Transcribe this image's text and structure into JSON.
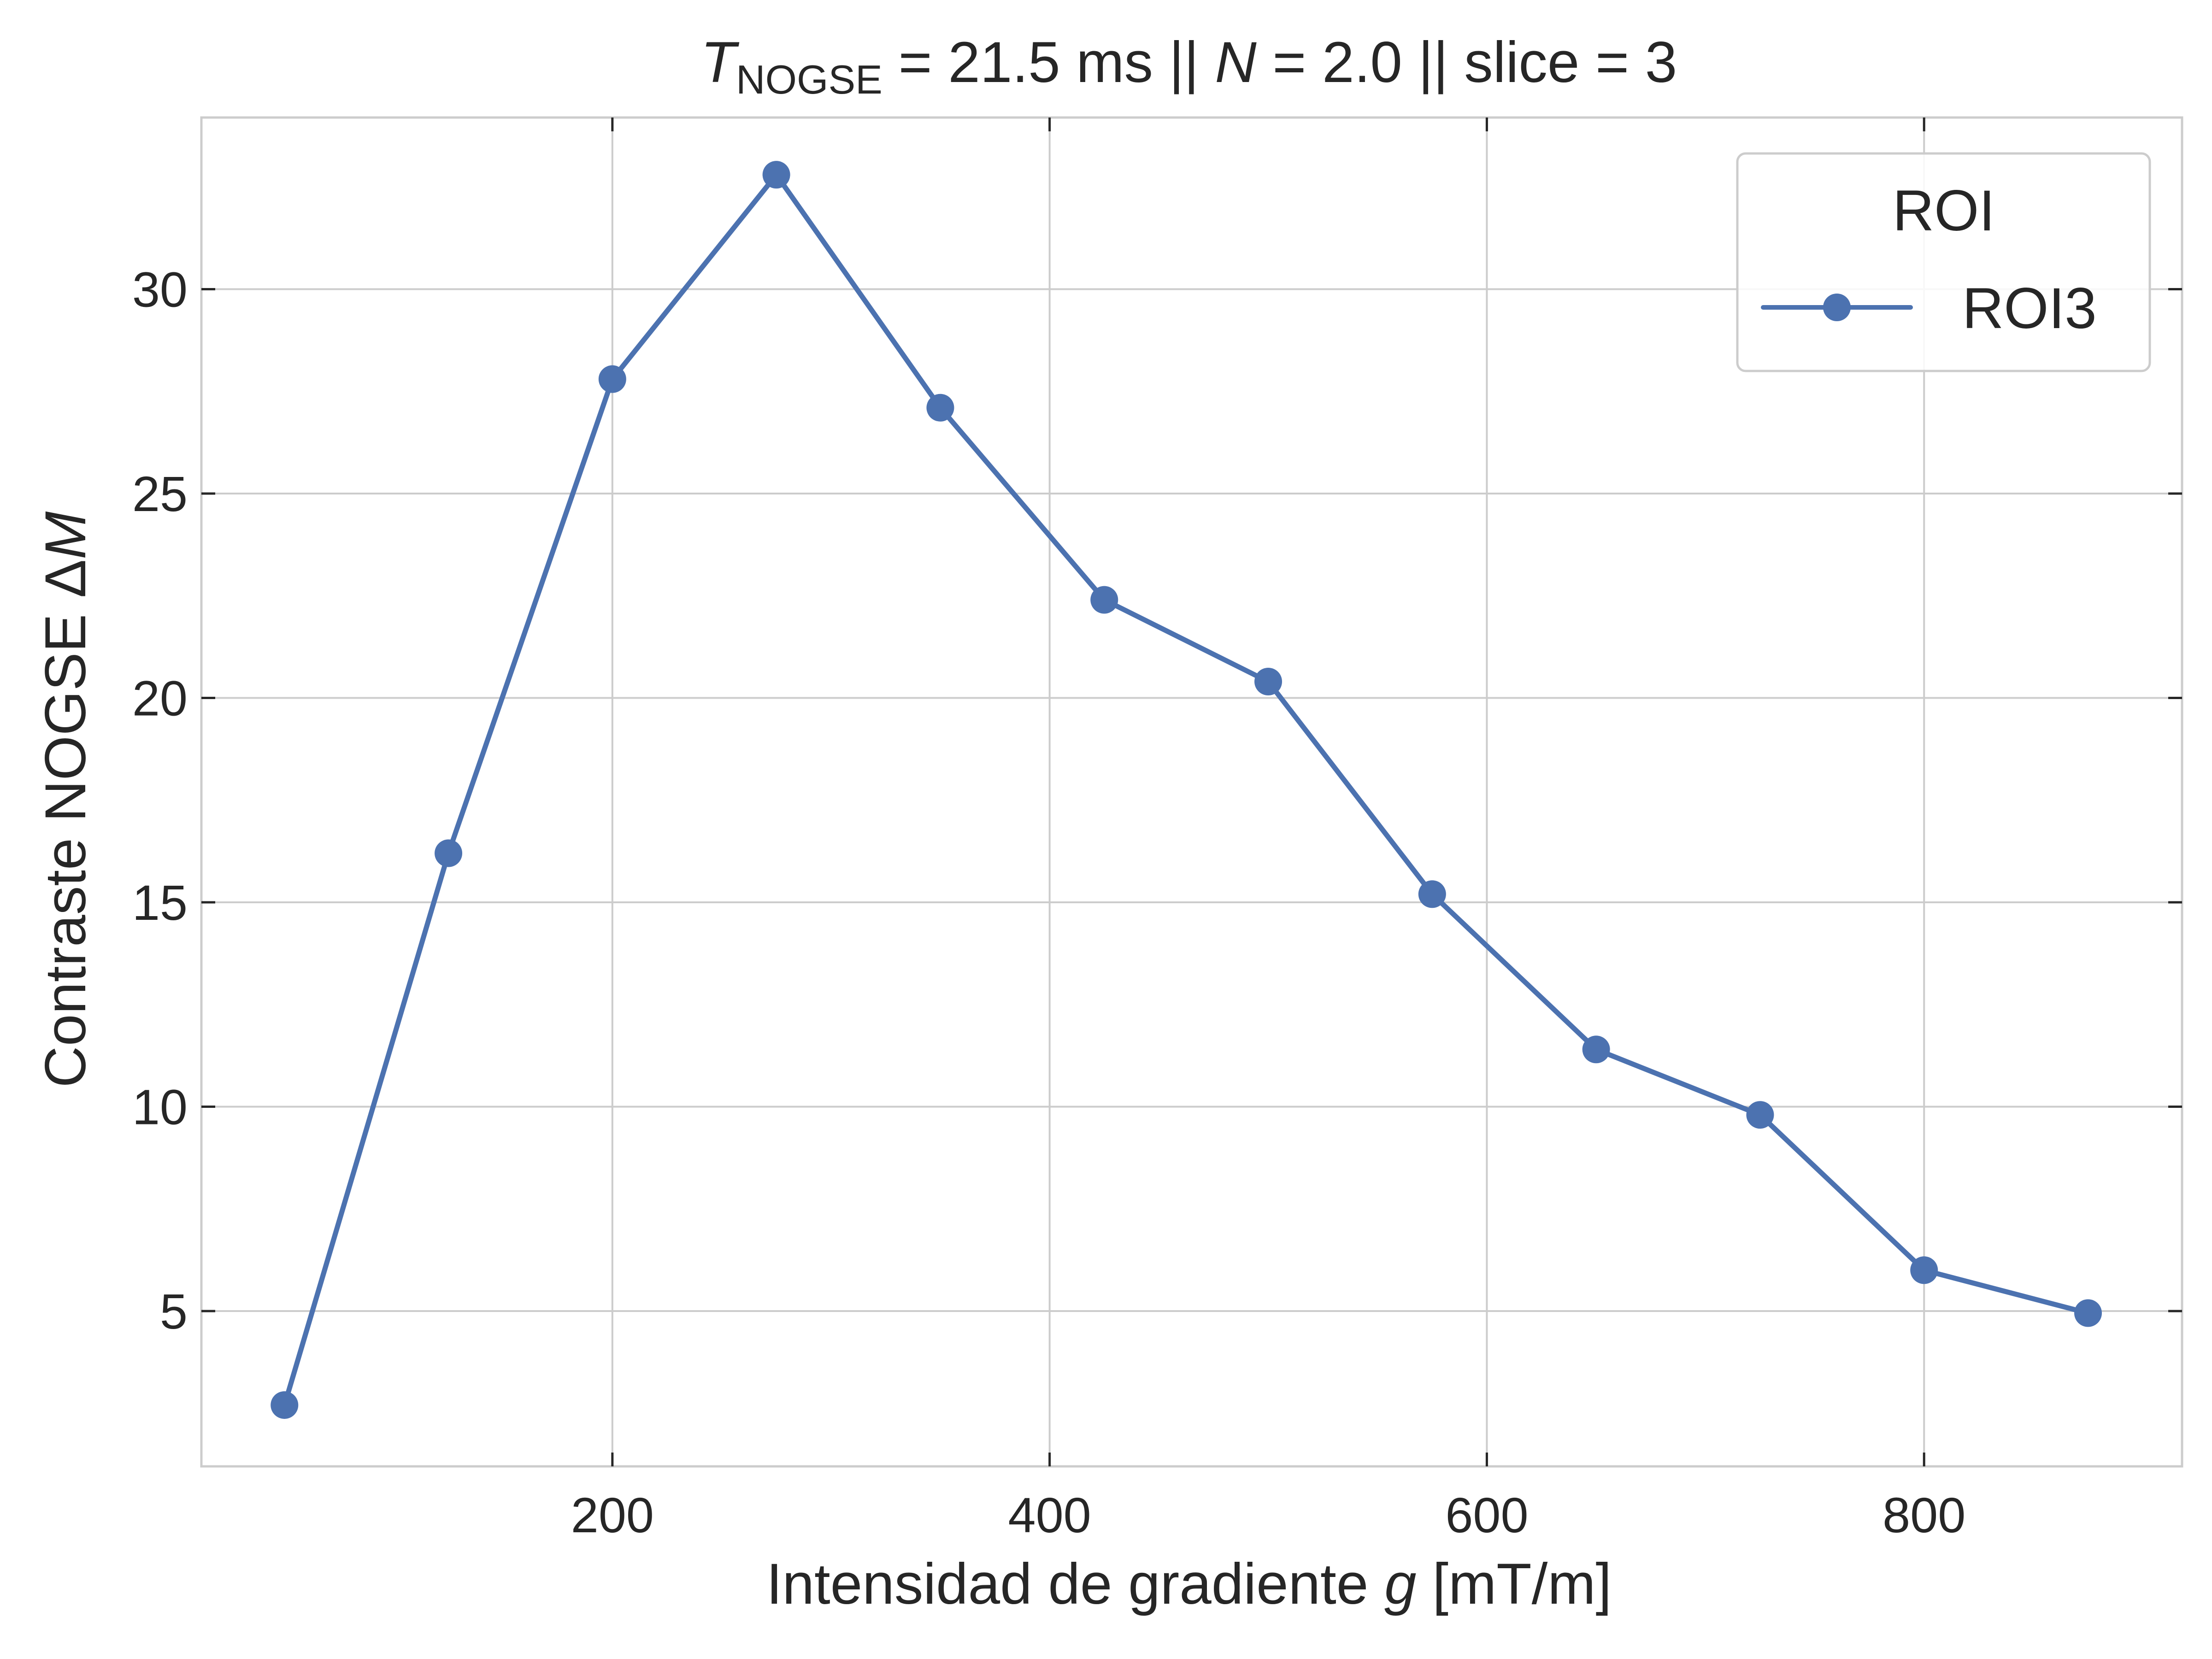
{
  "chart_data": {
    "type": "line",
    "title": {
      "t_symbol": "T",
      "t_subscript": "NOGSE",
      "t_value": " = 21.5 ms  ||  ",
      "n_symbol": "N",
      "rest": " = 2.0 || slice = 3"
    },
    "xlabel": {
      "text": "Intensidad de gradiente ",
      "symbol": "g",
      "unit": " [mT/m]"
    },
    "ylabel": {
      "text": "Contraste NOGSE Δ",
      "symbol": "M"
    },
    "xlim": [
      12,
      918
    ],
    "ylim": [
      1.2,
      34.2
    ],
    "x_ticks": [
      200,
      400,
      600,
      800
    ],
    "y_ticks": [
      5,
      10,
      15,
      20,
      25,
      30
    ],
    "grid": true,
    "legend": {
      "title": "ROI",
      "placement": "top-right"
    },
    "series": [
      {
        "name": "ROI3",
        "color": "#4c72b0",
        "x": [
          50,
          125,
          200,
          275,
          350,
          425,
          500,
          575,
          650,
          725,
          800,
          875
        ],
        "y": [
          2.7,
          16.2,
          27.8,
          32.8,
          27.1,
          22.4,
          20.4,
          15.2,
          11.4,
          9.8,
          6.0,
          4.95
        ]
      }
    ]
  }
}
